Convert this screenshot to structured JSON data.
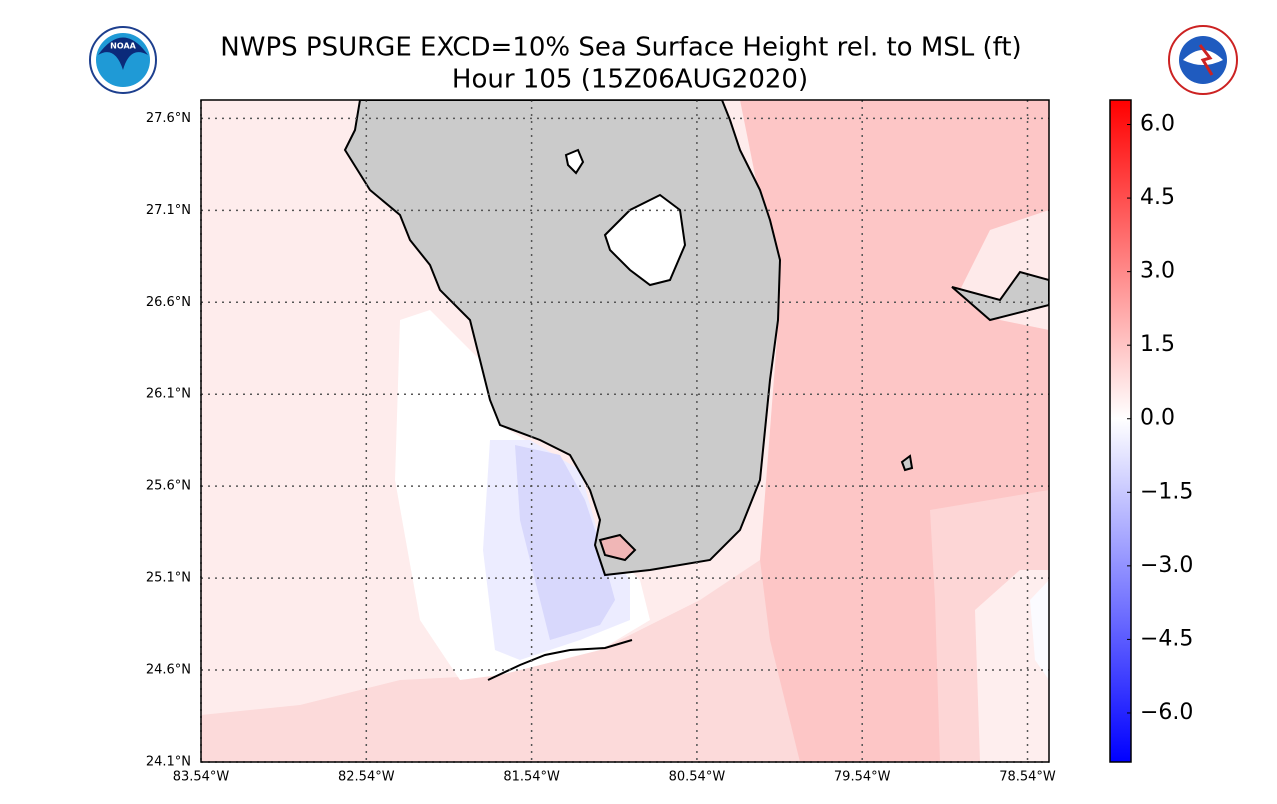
{
  "title": "NWPS PSURGE EXCD=10% Sea Surface Height rel. to MSL (ft)",
  "subtitle": "Hour 105 (15Z06AUG2020)",
  "map": {
    "xlim": [
      -83.54,
      -78.41
    ],
    "ylim": [
      24.1,
      27.7
    ],
    "xticks": [
      {
        "value": -83.54,
        "label": "83.54°W"
      },
      {
        "value": -82.54,
        "label": "82.54°W"
      },
      {
        "value": -81.54,
        "label": "81.54°W"
      },
      {
        "value": -80.54,
        "label": "80.54°W"
      },
      {
        "value": -79.54,
        "label": "79.54°W"
      },
      {
        "value": -78.54,
        "label": "78.54°W"
      }
    ],
    "yticks": [
      {
        "value": 24.1,
        "label": "24.1°N"
      },
      {
        "value": 24.6,
        "label": "24.6°N"
      },
      {
        "value": 25.1,
        "label": "25.1°N"
      },
      {
        "value": 25.6,
        "label": "25.6°N"
      },
      {
        "value": 26.1,
        "label": "26.1°N"
      },
      {
        "value": 26.6,
        "label": "26.6°N"
      },
      {
        "value": 27.1,
        "label": "27.1°N"
      },
      {
        "value": 27.6,
        "label": "27.6°N"
      }
    ]
  },
  "colorbar": {
    "ylim": [
      -7,
      6.5
    ],
    "yticks": [
      {
        "value": -6,
        "label": "−6.0"
      },
      {
        "value": -4.5,
        "label": "−4.5"
      },
      {
        "value": -3,
        "label": "−3.0"
      },
      {
        "value": -1.5,
        "label": "−1.5"
      },
      {
        "value": 0,
        "label": "0.0"
      },
      {
        "value": 1.5,
        "label": "1.5"
      },
      {
        "value": 3,
        "label": "3.0"
      },
      {
        "value": 4.5,
        "label": "4.5"
      },
      {
        "value": 6,
        "label": "6.0"
      }
    ]
  }
}
